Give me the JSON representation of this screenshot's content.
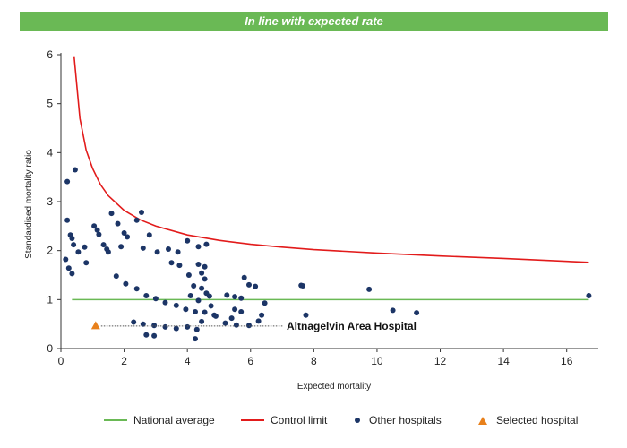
{
  "banner": {
    "text": "In line with expected rate"
  },
  "colors": {
    "national": "#6ab955",
    "control": "#e21b1b",
    "other": "#1c3566",
    "selected": "#e8801b",
    "banner": "#6ab955"
  },
  "legend": {
    "national": "National average",
    "control": "Control limit",
    "other": "Other hospitals",
    "selected": "Selected hospital"
  },
  "chart_data": {
    "type": "scatter",
    "xlabel": "Expected mortality",
    "ylabel": "Standardised mortality ratio",
    "xlim": [
      0,
      17
    ],
    "ylim": [
      0,
      6
    ],
    "xticks": [
      0,
      2,
      4,
      6,
      8,
      10,
      12,
      14,
      16
    ],
    "yticks": [
      0,
      1,
      2,
      3,
      4,
      5,
      6
    ],
    "grid": false,
    "legend_position": "bottom",
    "national_average": 1,
    "control_limit": [
      [
        0.42,
        5.95
      ],
      [
        0.6,
        4.7
      ],
      [
        0.8,
        4.05
      ],
      [
        1.0,
        3.68
      ],
      [
        1.25,
        3.35
      ],
      [
        1.5,
        3.12
      ],
      [
        2.0,
        2.82
      ],
      [
        2.5,
        2.63
      ],
      [
        3.0,
        2.5
      ],
      [
        4.0,
        2.32
      ],
      [
        5.0,
        2.21
      ],
      [
        6.0,
        2.13
      ],
      [
        7.0,
        2.07
      ],
      [
        8.0,
        2.02
      ],
      [
        10.0,
        1.95
      ],
      [
        12.0,
        1.89
      ],
      [
        14.0,
        1.84
      ],
      [
        16.7,
        1.76
      ]
    ],
    "selected_hospital": {
      "name": "Altnagelvin Area Hospital",
      "x": 1.1,
      "y": 0.46
    },
    "series": [
      {
        "name": "Other hospitals",
        "points": [
          [
            0.2,
            3.41
          ],
          [
            0.45,
            3.65
          ],
          [
            0.2,
            2.62
          ],
          [
            0.3,
            2.32
          ],
          [
            0.35,
            2.25
          ],
          [
            0.4,
            2.12
          ],
          [
            0.55,
            1.97
          ],
          [
            0.75,
            2.07
          ],
          [
            0.15,
            1.82
          ],
          [
            0.25,
            1.64
          ],
          [
            0.35,
            1.53
          ],
          [
            0.8,
            1.75
          ],
          [
            1.05,
            2.5
          ],
          [
            1.15,
            2.42
          ],
          [
            1.2,
            2.33
          ],
          [
            1.35,
            2.12
          ],
          [
            1.45,
            2.03
          ],
          [
            1.6,
            2.76
          ],
          [
            1.8,
            2.55
          ],
          [
            1.5,
            1.97
          ],
          [
            1.9,
            2.08
          ],
          [
            2.0,
            2.36
          ],
          [
            2.1,
            2.28
          ],
          [
            2.4,
            2.62
          ],
          [
            2.55,
            2.78
          ],
          [
            2.8,
            2.32
          ],
          [
            2.6,
            2.05
          ],
          [
            3.05,
            1.97
          ],
          [
            3.4,
            2.03
          ],
          [
            3.7,
            1.97
          ],
          [
            4.0,
            2.2
          ],
          [
            4.35,
            2.08
          ],
          [
            4.6,
            2.13
          ],
          [
            3.5,
            1.75
          ],
          [
            3.75,
            1.7
          ],
          [
            4.35,
            1.72
          ],
          [
            4.45,
            1.54
          ],
          [
            4.55,
            1.67
          ],
          [
            4.05,
            1.5
          ],
          [
            4.55,
            1.42
          ],
          [
            4.2,
            1.28
          ],
          [
            4.45,
            1.23
          ],
          [
            4.6,
            1.13
          ],
          [
            4.1,
            1.08
          ],
          [
            4.35,
            0.98
          ],
          [
            4.7,
            1.07
          ],
          [
            4.75,
            0.87
          ],
          [
            4.85,
            0.68
          ],
          [
            4.45,
            0.55
          ],
          [
            4.3,
            0.39
          ],
          [
            4.25,
            0.2
          ],
          [
            5.25,
            1.09
          ],
          [
            5.5,
            1.06
          ],
          [
            5.7,
            1.03
          ],
          [
            5.8,
            1.45
          ],
          [
            5.95,
            1.3
          ],
          [
            6.15,
            1.27
          ],
          [
            6.45,
            0.93
          ],
          [
            6.25,
            0.56
          ],
          [
            6.35,
            0.68
          ],
          [
            5.95,
            0.47
          ],
          [
            5.5,
            0.8
          ],
          [
            5.7,
            0.75
          ],
          [
            5.4,
            0.62
          ],
          [
            7.6,
            1.29
          ],
          [
            7.65,
            1.28
          ],
          [
            7.75,
            0.68
          ],
          [
            9.75,
            1.21
          ],
          [
            10.5,
            0.78
          ],
          [
            11.25,
            0.73
          ],
          [
            16.7,
            1.08
          ],
          [
            1.75,
            1.48
          ],
          [
            2.05,
            1.32
          ],
          [
            2.4,
            1.22
          ],
          [
            2.7,
            1.08
          ],
          [
            3.0,
            1.02
          ],
          [
            3.3,
            0.94
          ],
          [
            3.65,
            0.88
          ],
          [
            3.95,
            0.8
          ],
          [
            4.25,
            0.75
          ],
          [
            4.55,
            0.74
          ],
          [
            4.9,
            0.66
          ],
          [
            5.2,
            0.52
          ],
          [
            5.55,
            0.48
          ],
          [
            2.3,
            0.54
          ],
          [
            2.6,
            0.5
          ],
          [
            2.95,
            0.47
          ],
          [
            3.3,
            0.44
          ],
          [
            3.65,
            0.41
          ],
          [
            4.0,
            0.44
          ],
          [
            2.7,
            0.28
          ],
          [
            2.95,
            0.26
          ]
        ]
      }
    ]
  }
}
